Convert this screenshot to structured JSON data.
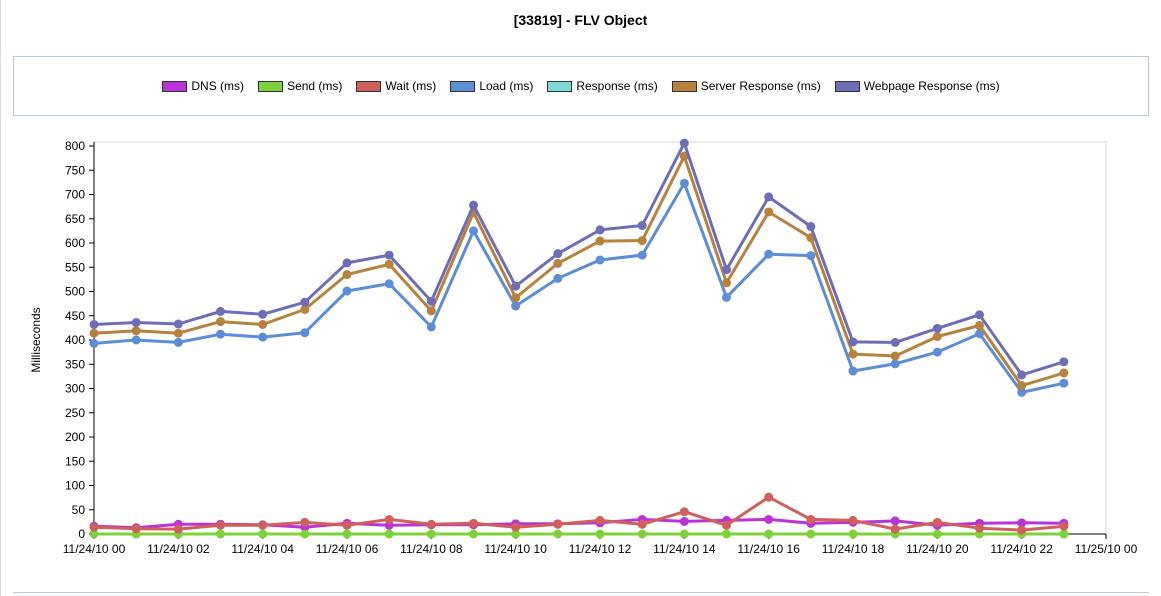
{
  "chart_data": {
    "type": "line",
    "title": "[33819] - FLV Object",
    "ylabel": "Milliseconds",
    "xlabel": "",
    "ylim": [
      0,
      800
    ],
    "yticks": [
      0,
      50,
      100,
      150,
      200,
      250,
      300,
      350,
      400,
      450,
      500,
      550,
      600,
      650,
      700,
      750,
      800
    ],
    "xlim": [
      0,
      24
    ],
    "xtick_values": [
      0,
      2,
      4,
      6,
      8,
      10,
      12,
      14,
      16,
      18,
      20,
      22,
      24
    ],
    "xtick_labels": [
      "11/24/10 00",
      "11/24/10 02",
      "11/24/10 04",
      "11/24/10 06",
      "11/24/10 08",
      "11/24/10 10",
      "11/24/10 12",
      "11/24/10 14",
      "11/24/10 16",
      "11/24/10 18",
      "11/24/10 20",
      "11/24/10 22",
      "11/25/10 00"
    ],
    "x": [
      0,
      1,
      2,
      3,
      4,
      5,
      6,
      7,
      8,
      9,
      10,
      11,
      12,
      13,
      14,
      15,
      16,
      17,
      18,
      19,
      20,
      21,
      22,
      23
    ],
    "grid": false,
    "legend_position": "top",
    "series": [
      {
        "name": "DNS (ms)",
        "color": "#b933d9",
        "values": [
          16,
          13,
          20,
          20,
          19,
          14,
          22,
          18,
          19,
          19,
          21,
          21,
          23,
          30,
          26,
          28,
          30,
          22,
          24,
          27,
          18,
          22,
          23,
          22
        ]
      },
      {
        "name": "Send (ms)",
        "color": "#7fd13b",
        "values": [
          0,
          0,
          0,
          0,
          0,
          0,
          0,
          0,
          0,
          0,
          0,
          0,
          0,
          0,
          0,
          0,
          0,
          0,
          0,
          0,
          0,
          0,
          0,
          0
        ]
      },
      {
        "name": "Wait (ms)",
        "color": "#d0605a",
        "values": [
          14,
          11,
          10,
          18,
          18,
          24,
          18,
          30,
          20,
          22,
          14,
          20,
          28,
          20,
          46,
          18,
          76,
          30,
          28,
          10,
          24,
          12,
          8,
          16
        ]
      },
      {
        "name": "Load (ms)",
        "color": "#5b8ed6",
        "values": [
          393,
          400,
          395,
          412,
          406,
          415,
          501,
          516,
          427,
          625,
          470,
          527,
          565,
          575,
          723,
          488,
          577,
          574,
          336,
          351,
          375,
          413,
          292,
          311
        ]
      },
      {
        "name": "Response (ms)",
        "color": "#7fd8d8",
        "values": [
          null,
          null,
          null,
          null,
          null,
          null,
          null,
          null,
          null,
          null,
          null,
          null,
          null,
          null,
          null,
          null,
          null,
          null,
          null,
          null,
          null,
          null,
          null,
          null
        ]
      },
      {
        "name": "Server Response (ms)",
        "color": "#b8823d",
        "values": [
          414,
          419,
          414,
          438,
          432,
          463,
          535,
          556,
          460,
          663,
          487,
          558,
          604,
          605,
          779,
          518,
          664,
          611,
          371,
          367,
          407,
          430,
          306,
          332
        ]
      },
      {
        "name": "Webpage Response (ms)",
        "color": "#6f6cb8",
        "values": [
          432,
          436,
          433,
          459,
          453,
          478,
          559,
          575,
          480,
          678,
          511,
          578,
          627,
          636,
          806,
          545,
          695,
          634,
          396,
          395,
          424,
          452,
          328,
          355
        ]
      }
    ]
  }
}
